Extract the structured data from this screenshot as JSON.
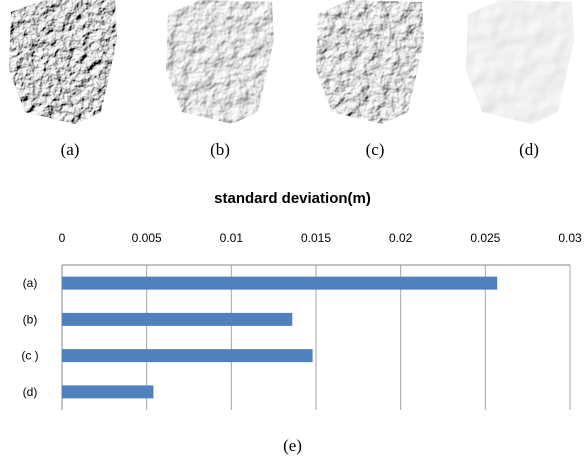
{
  "panels": [
    {
      "label": "(a)"
    },
    {
      "label": "(b)"
    },
    {
      "label": "(c)"
    },
    {
      "label": "(d)"
    }
  ],
  "figure_caption": "(e)",
  "chart_data": {
    "type": "bar",
    "orientation": "horizontal",
    "title": "standard deviation(m)",
    "xlabel": "",
    "ylabel": "",
    "categories": [
      "(a)",
      "(b)",
      "(c )",
      "(d)"
    ],
    "values": [
      0.0257,
      0.0136,
      0.0148,
      0.0054
    ],
    "xlim": [
      0,
      0.03
    ],
    "x_ticks": [
      "0",
      "0.005",
      "0.01",
      "0.015",
      "0.02",
      "0.025",
      "0.03"
    ],
    "x_axis_position": "top",
    "grid": true,
    "legend": "none",
    "bar_color": "#4f81bd"
  }
}
